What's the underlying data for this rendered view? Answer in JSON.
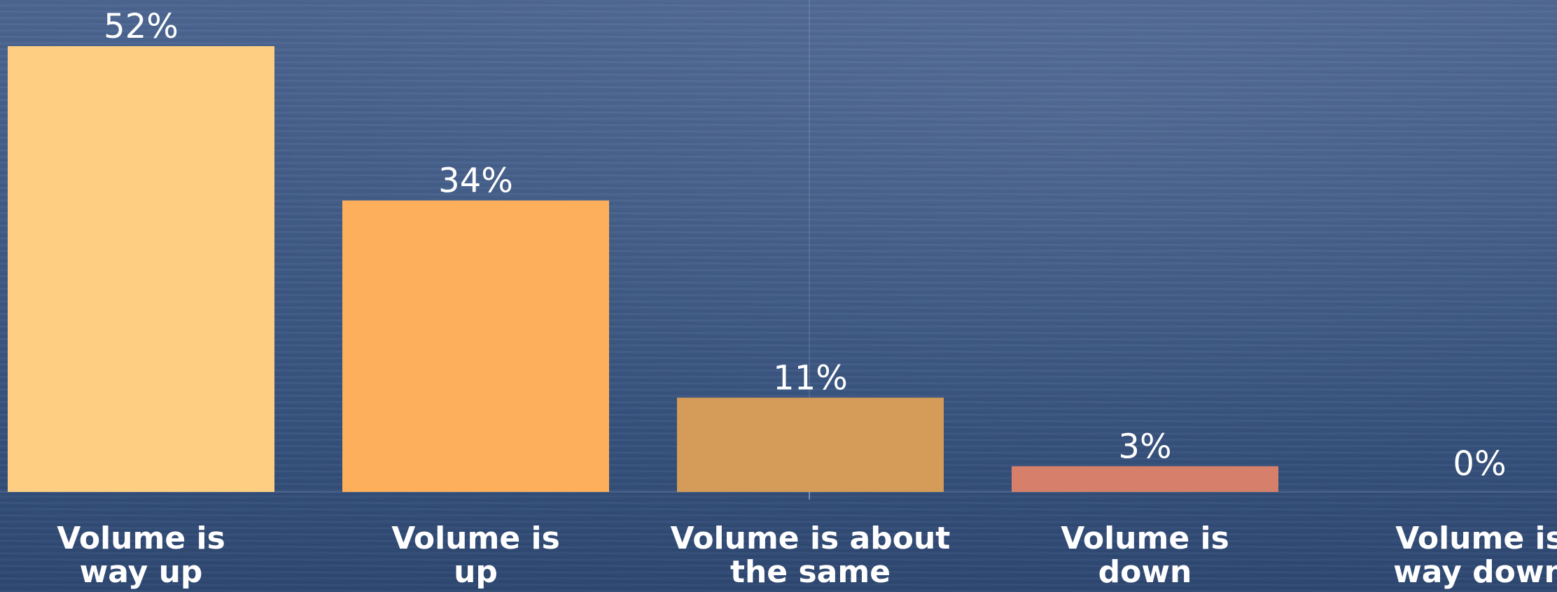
{
  "chart_data": {
    "type": "bar",
    "categories": [
      [
        "Volume is",
        "way up"
      ],
      [
        "Volume is",
        "up"
      ],
      [
        "Volume is about",
        "the same"
      ],
      [
        "Volume is",
        "down"
      ],
      [
        "Volume is",
        "way down"
      ]
    ],
    "values": [
      52,
      34,
      11,
      3,
      0
    ],
    "value_labels": [
      "52%",
      "34%",
      "11%",
      "3%",
      "0%"
    ],
    "ylim": [
      0,
      52
    ],
    "grid": false,
    "bar_colors": [
      "#fecf83",
      "#fdaf5b",
      "#d49c58",
      "#d67f6b",
      "#d67f6b"
    ]
  }
}
